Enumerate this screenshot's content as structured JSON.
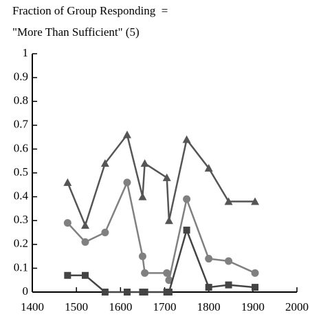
{
  "chart_data": {
    "type": "line",
    "title": [
      "Fraction of Group Responding  =",
      "\"More Than Sufficient\" (5)"
    ],
    "x": [
      1480,
      1520,
      1565,
      1615,
      1650,
      1655,
      1705,
      1710,
      1750,
      1800,
      1845,
      1905
    ],
    "series": [
      {
        "color": "#555555",
        "marker": "triangle",
        "values": [
          0.46,
          0.28,
          0.54,
          0.66,
          0.4,
          0.54,
          0.48,
          0.3,
          0.64,
          0.52,
          0.38,
          0.38
        ]
      },
      {
        "color": "#808080",
        "marker": "circle",
        "values": [
          0.29,
          0.21,
          0.25,
          0.46,
          0.15,
          0.08,
          0.08,
          0.05,
          0.39,
          0.14,
          0.13,
          0.08
        ]
      },
      {
        "color": "#444444",
        "marker": "square",
        "values": [
          0.07,
          0.07,
          0,
          0,
          0,
          0,
          0,
          0,
          0.26,
          0.02,
          0.03,
          0.02
        ]
      }
    ],
    "xlim": [
      1400,
      2000
    ],
    "xticks": [
      1400,
      1500,
      1600,
      1700,
      1800,
      1900,
      2000
    ],
    "ylim": [
      0,
      1
    ],
    "yticks": [
      0,
      0.1,
      0.2,
      0.3,
      0.4,
      0.5,
      0.6,
      0.7,
      0.8,
      0.9,
      1
    ]
  }
}
